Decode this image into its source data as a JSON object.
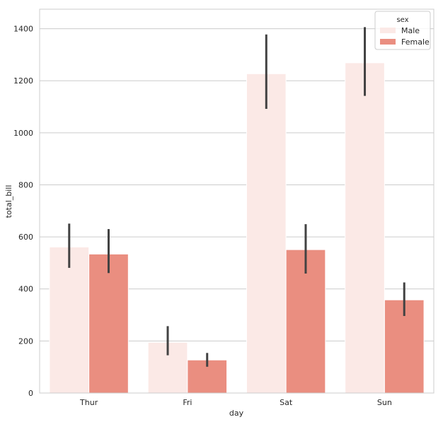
{
  "chart_data": {
    "type": "bar",
    "title": "",
    "xlabel": "day",
    "ylabel": "total_bill",
    "categories": [
      "Thur",
      "Fri",
      "Sat",
      "Sun"
    ],
    "ylim": [
      0,
      1475
    ],
    "yticks": [
      0,
      200,
      400,
      600,
      800,
      1000,
      1200,
      1400
    ],
    "grid": "horizontal",
    "legend": {
      "title": "sex",
      "placement": "top-right"
    },
    "series": [
      {
        "name": "Male",
        "color": "#fbe9e6",
        "values": [
          561,
          195,
          1227,
          1269
        ],
        "ci_low": [
          481,
          145,
          1092,
          1142
        ],
        "ci_high": [
          651,
          257,
          1378,
          1406
        ]
      },
      {
        "name": "Female",
        "color": "#ea8e80",
        "values": [
          534,
          127,
          551,
          358
        ],
        "ci_low": [
          461,
          101,
          459,
          296
        ],
        "ci_high": [
          630,
          154,
          649,
          425
        ]
      }
    ]
  }
}
